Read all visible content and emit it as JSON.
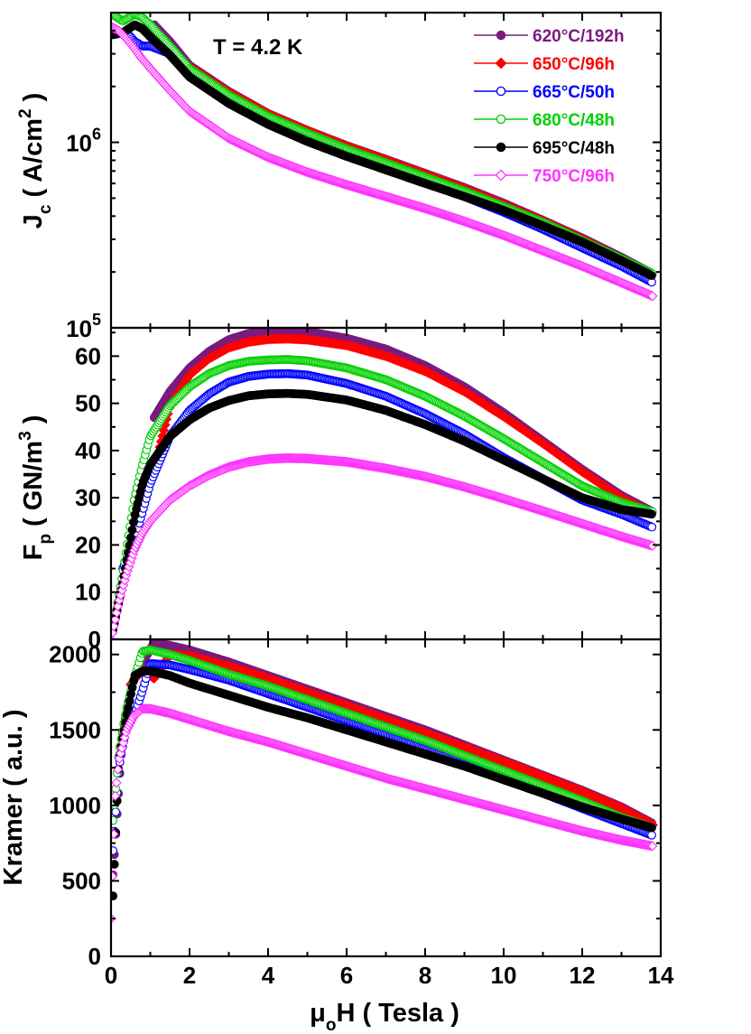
{
  "chart_data": [
    {
      "type": "scatter",
      "panel": "top",
      "ylabel_main": "J",
      "ylabel_sub": "c",
      "ylabel_rest": " ( A/cm",
      "ylabel_sup": "2",
      "ylabel_end": " )",
      "y_scale": "log",
      "ylim": [
        100000,
        5000000
      ],
      "xlim": [
        0,
        14
      ],
      "yticks": [
        {
          "value": 100000,
          "base": "10",
          "exp": "5"
        },
        {
          "value": 1000000,
          "base": "10",
          "exp": "6"
        }
      ],
      "annotation": "T = 4.2 K",
      "series": [
        {
          "name": "620°C/192h",
          "color": "#7b1b7e",
          "marker": "filled-circle",
          "x": [
            1.1,
            1.5,
            2,
            3,
            4,
            5,
            6,
            7,
            8,
            9,
            10,
            11,
            12,
            13,
            13.8
          ],
          "y": [
            4300000,
            3500000,
            2600000,
            1880000,
            1430000,
            1160000,
            960000,
            810000,
            680000,
            570000,
            470000,
            380000,
            305000,
            240000,
            195000
          ]
        },
        {
          "name": "650°C/96h",
          "color": "#ff0000",
          "marker": "filled-diamond",
          "x": [
            1.1,
            1.5,
            2,
            3,
            4,
            5,
            6,
            7,
            8,
            9,
            10,
            11,
            12,
            13,
            13.8
          ],
          "y": [
            3600000,
            3300000,
            2550000,
            1860000,
            1420000,
            1150000,
            950000,
            800000,
            670000,
            560000,
            460000,
            375000,
            300000,
            235000,
            192000
          ]
        },
        {
          "name": "665°C/50h",
          "color": "#0000ff",
          "marker": "open-circle",
          "x": [
            0.4,
            0.6,
            0.8,
            1,
            1.5,
            2,
            3,
            4,
            5,
            6,
            7,
            8,
            9,
            10,
            11,
            12,
            13,
            13.8
          ],
          "y": [
            3900000,
            3500000,
            3300000,
            3300000,
            3000000,
            2400000,
            1750000,
            1340000,
            1080000,
            890000,
            740000,
            620000,
            510000,
            420000,
            340000,
            270000,
            215000,
            175000
          ]
        },
        {
          "name": "680°C/48h",
          "color": "#00d000",
          "marker": "open-circle",
          "x": [
            0.1,
            0.3,
            0.6,
            0.8,
            1,
            1.5,
            2,
            3,
            4,
            5,
            6,
            7,
            8,
            9,
            10,
            11,
            12,
            13,
            13.8
          ],
          "y": [
            4800000,
            4500000,
            4900000,
            4700000,
            4300000,
            3300000,
            2500000,
            1800000,
            1380000,
            1120000,
            920000,
            775000,
            650000,
            545000,
            450000,
            370000,
            295000,
            235000,
            195000
          ]
        },
        {
          "name": "695°C/48h",
          "color": "#000000",
          "marker": "filled-circle",
          "x": [
            0.05,
            0.3,
            0.6,
            0.8,
            1,
            1.5,
            2,
            3,
            4,
            5,
            6,
            7,
            8,
            9,
            10,
            11,
            12,
            13,
            13.8
          ],
          "y": [
            3800000,
            3900000,
            4300000,
            4100000,
            3700000,
            2950000,
            2250000,
            1620000,
            1250000,
            1010000,
            840000,
            710000,
            600000,
            510000,
            430000,
            355000,
            290000,
            230000,
            190000
          ]
        },
        {
          "name": "750°C/96h",
          "color": "#ff33ff",
          "marker": "open-diamond",
          "x": [
            0,
            0.2,
            0.4,
            0.6,
            0.8,
            1,
            1.5,
            2,
            3,
            4,
            5,
            6,
            7,
            8,
            9,
            10,
            11,
            12,
            13,
            13.8
          ],
          "y": [
            4200000,
            4000000,
            3600000,
            3200000,
            2800000,
            2500000,
            1900000,
            1470000,
            1050000,
            830000,
            690000,
            590000,
            510000,
            440000,
            375000,
            315000,
            260000,
            215000,
            175000,
            148000
          ]
        }
      ]
    },
    {
      "type": "scatter",
      "panel": "middle",
      "ylabel_main": "F",
      "ylabel_sub": "p",
      "ylabel_rest": " ( GN/m",
      "ylabel_sup": "3",
      "ylabel_end": " )",
      "y_scale": "linear",
      "ylim": [
        0,
        66
      ],
      "xlim": [
        0,
        14
      ],
      "yticks": [
        0,
        10,
        20,
        30,
        40,
        50,
        60
      ],
      "series": [
        {
          "name": "620°C/192h",
          "color": "#7b1b7e",
          "marker": "filled-circle",
          "x": [
            1.1,
            1.5,
            2,
            2.5,
            3,
            3.5,
            4,
            4.5,
            5,
            6,
            7,
            8,
            9,
            10,
            11,
            12,
            13,
            13.8
          ],
          "y": [
            47,
            52.5,
            57.5,
            61,
            63.5,
            64.8,
            65.3,
            65.4,
            65.2,
            63.8,
            61.5,
            58,
            53.5,
            48,
            42,
            36,
            30.5,
            27
          ]
        },
        {
          "name": "650°C/96h",
          "color": "#ff0000",
          "marker": "filled-diamond",
          "x": [
            1.1,
            1.5,
            2,
            2.5,
            3,
            3.5,
            4,
            4.5,
            5,
            6,
            7,
            8,
            9,
            10,
            11,
            12,
            13,
            13.8
          ],
          "y": [
            36,
            49.5,
            56,
            59.5,
            61.8,
            63,
            63.6,
            63.7,
            63.5,
            62.3,
            60,
            56.8,
            52.5,
            47.2,
            41.5,
            35.5,
            30,
            26.5
          ]
        },
        {
          "name": "665°C/50h",
          "color": "#0000ff",
          "marker": "open-circle",
          "x": [
            0.3,
            0.6,
            0.8,
            1,
            1.5,
            2,
            2.5,
            3,
            3.5,
            4,
            4.5,
            5,
            6,
            7,
            8,
            9,
            10,
            11,
            12,
            13,
            13.8
          ],
          "y": [
            15,
            21,
            27,
            33,
            43,
            48.5,
            52,
            54.5,
            55.7,
            56.2,
            56.3,
            56,
            54.2,
            51.5,
            47.8,
            43.5,
            38.5,
            34,
            29.5,
            26.5,
            23.7
          ]
        },
        {
          "name": "680°C/48h",
          "color": "#00d000",
          "marker": "open-circle",
          "x": [
            0.1,
            0.3,
            0.6,
            0.8,
            1,
            1.5,
            2,
            2.5,
            3,
            3.5,
            4,
            4.5,
            5,
            6,
            7,
            8,
            9,
            10,
            11,
            12,
            13,
            13.8
          ],
          "y": [
            4.5,
            14,
            30,
            37,
            43,
            49.5,
            53.5,
            56.3,
            58,
            58.9,
            59.2,
            59.3,
            59,
            57.5,
            55,
            51.5,
            47.3,
            42.5,
            37.5,
            32.5,
            29,
            27
          ]
        },
        {
          "name": "695°C/48h",
          "color": "#000000",
          "marker": "filled-circle",
          "x": [
            0.05,
            0.3,
            0.6,
            0.8,
            1,
            1.5,
            2,
            2.5,
            3,
            3.5,
            4,
            4.5,
            5,
            6,
            7,
            8,
            9,
            10,
            11,
            12,
            13,
            13.8
          ],
          "y": [
            2,
            12,
            26,
            33,
            37,
            43,
            46.5,
            49,
            50.6,
            51.6,
            52,
            52.1,
            51.9,
            50.7,
            48.5,
            45.5,
            42,
            38,
            34,
            30,
            27.5,
            26.5
          ]
        },
        {
          "name": "750°C/96h",
          "color": "#ff33ff",
          "marker": "open-diamond",
          "x": [
            0,
            0.2,
            0.4,
            0.6,
            0.8,
            1,
            1.5,
            2,
            2.5,
            3,
            3.5,
            4,
            4.5,
            5,
            6,
            7,
            8,
            9,
            10,
            11,
            12,
            13,
            13.8
          ],
          "y": [
            0,
            8,
            14,
            19,
            22.5,
            25,
            29.5,
            32.5,
            34.8,
            36.5,
            37.6,
            38.2,
            38.4,
            38.3,
            37.6,
            36.2,
            34.5,
            32.3,
            29.8,
            27.2,
            24.5,
            21.8,
            19.8
          ]
        }
      ]
    },
    {
      "type": "scatter",
      "panel": "bottom",
      "ylabel": "Kramer ( a.u. )",
      "xlabel_main": "μ",
      "xlabel_sub": "o",
      "xlabel_rest": "H ( Tesla )",
      "y_scale": "linear",
      "ylim": [
        0,
        2100
      ],
      "xlim": [
        0,
        14
      ],
      "yticks": [
        0,
        500,
        1000,
        1500,
        2000
      ],
      "xticks": [
        0,
        2,
        4,
        6,
        8,
        10,
        12,
        14
      ],
      "series": [
        {
          "name": "620°C/192h",
          "color": "#7b1b7e",
          "marker": "filled-circle",
          "x": [
            0.05,
            0.3,
            0.6,
            1.1,
            1.5,
            2,
            3,
            4,
            5,
            6,
            7,
            8,
            9,
            10,
            11,
            12,
            13,
            13.8
          ],
          "y": [
            540,
            1500,
            1850,
            2080,
            2060,
            2030,
            1950,
            1860,
            1770,
            1680,
            1590,
            1500,
            1400,
            1300,
            1200,
            1100,
            990,
            880
          ]
        },
        {
          "name": "650°C/96h",
          "color": "#ff0000",
          "marker": "filled-diamond",
          "x": [
            0.5,
            0.8,
            1.1,
            1.5,
            2,
            3,
            4,
            5,
            6,
            7,
            8,
            9,
            10,
            11,
            12,
            13,
            13.8
          ],
          "y": [
            1800,
            1900,
            1840,
            2000,
            1990,
            1920,
            1840,
            1750,
            1660,
            1570,
            1480,
            1385,
            1290,
            1190,
            1090,
            980,
            870
          ]
        },
        {
          "name": "665°C/50h",
          "color": "#0000ff",
          "marker": "open-circle",
          "x": [
            0.05,
            0.2,
            0.4,
            0.6,
            0.8,
            1,
            1.5,
            2,
            3,
            4,
            5,
            6,
            7,
            8,
            9,
            10,
            11,
            12,
            13,
            13.8
          ],
          "y": [
            700,
            1250,
            1540,
            1600,
            1760,
            1940,
            1930,
            1900,
            1830,
            1740,
            1650,
            1560,
            1470,
            1380,
            1280,
            1180,
            1080,
            980,
            880,
            800
          ]
        },
        {
          "name": "680°C/48h",
          "color": "#00d000",
          "marker": "open-circle",
          "x": [
            0.05,
            0.2,
            0.4,
            0.6,
            0.8,
            1,
            1.5,
            2,
            3,
            4,
            5,
            6,
            7,
            8,
            9,
            10,
            11,
            12,
            13,
            13.8
          ],
          "y": [
            900,
            1350,
            1650,
            1850,
            2020,
            2030,
            2000,
            1960,
            1870,
            1790,
            1700,
            1610,
            1520,
            1430,
            1330,
            1230,
            1130,
            1030,
            920,
            850
          ]
        },
        {
          "name": "695°C/48h",
          "color": "#000000",
          "marker": "filled-circle",
          "x": [
            0.05,
            0.2,
            0.4,
            0.6,
            0.8,
            1,
            1.5,
            2,
            3,
            4,
            5,
            6,
            7,
            8,
            9,
            10,
            11,
            12,
            13,
            13.8
          ],
          "y": [
            400,
            1300,
            1600,
            1860,
            1890,
            1890,
            1860,
            1810,
            1730,
            1650,
            1580,
            1500,
            1420,
            1340,
            1260,
            1170,
            1080,
            990,
            910,
            850
          ]
        },
        {
          "name": "750°C/96h",
          "color": "#ff33ff",
          "marker": "open-diamond",
          "x": [
            0,
            0.1,
            0.2,
            0.4,
            0.6,
            0.8,
            1,
            1.5,
            2,
            3,
            4,
            5,
            6,
            7,
            8,
            9,
            10,
            11,
            12,
            13,
            13.8
          ],
          "y": [
            250,
            1050,
            1300,
            1500,
            1600,
            1640,
            1640,
            1610,
            1570,
            1490,
            1420,
            1340,
            1260,
            1180,
            1110,
            1040,
            970,
            900,
            830,
            770,
            730
          ]
        }
      ]
    }
  ]
}
